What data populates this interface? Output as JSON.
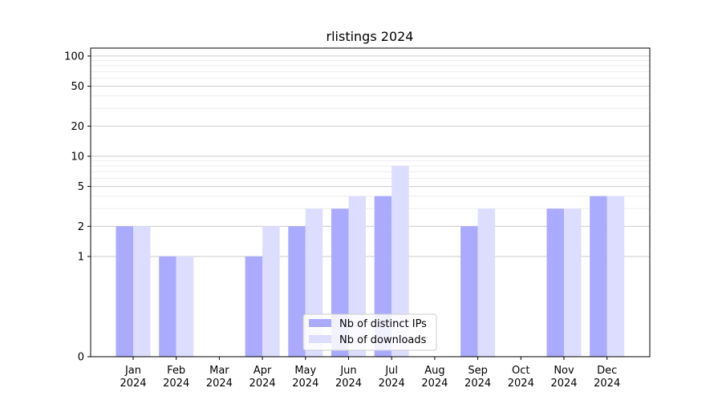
{
  "chart_data": {
    "type": "bar",
    "title": "rlistings 2024",
    "xlabel": "",
    "ylabel": "",
    "yscale": "symlog",
    "ylim": [
      0,
      120
    ],
    "yticks": [
      {
        "value": 0,
        "label": "0"
      },
      {
        "value": 1,
        "label": "1"
      },
      {
        "value": 2,
        "label": "2"
      },
      {
        "value": 5,
        "label": "5"
      },
      {
        "value": 10,
        "label": "10"
      },
      {
        "value": 20,
        "label": "20"
      },
      {
        "value": 50,
        "label": "50"
      },
      {
        "value": 100,
        "label": "100"
      }
    ],
    "categories": [
      {
        "month": "Jan",
        "year": "2024"
      },
      {
        "month": "Feb",
        "year": "2024"
      },
      {
        "month": "Mar",
        "year": "2024"
      },
      {
        "month": "Apr",
        "year": "2024"
      },
      {
        "month": "May",
        "year": "2024"
      },
      {
        "month": "Jun",
        "year": "2024"
      },
      {
        "month": "Jul",
        "year": "2024"
      },
      {
        "month": "Aug",
        "year": "2024"
      },
      {
        "month": "Sep",
        "year": "2024"
      },
      {
        "month": "Oct",
        "year": "2024"
      },
      {
        "month": "Nov",
        "year": "2024"
      },
      {
        "month": "Dec",
        "year": "2024"
      }
    ],
    "series": [
      {
        "name": "Nb of distinct IPs",
        "color": "#aaaaff",
        "values": [
          2,
          1,
          0,
          1,
          2,
          3,
          4,
          0,
          2,
          0,
          3,
          4
        ]
      },
      {
        "name": "Nb of downloads",
        "color": "#ddddff",
        "values": [
          2,
          1,
          0,
          2,
          3,
          4,
          8,
          0,
          3,
          0,
          3,
          4
        ]
      }
    ],
    "grid": true,
    "legend_position": "bottom-center"
  }
}
